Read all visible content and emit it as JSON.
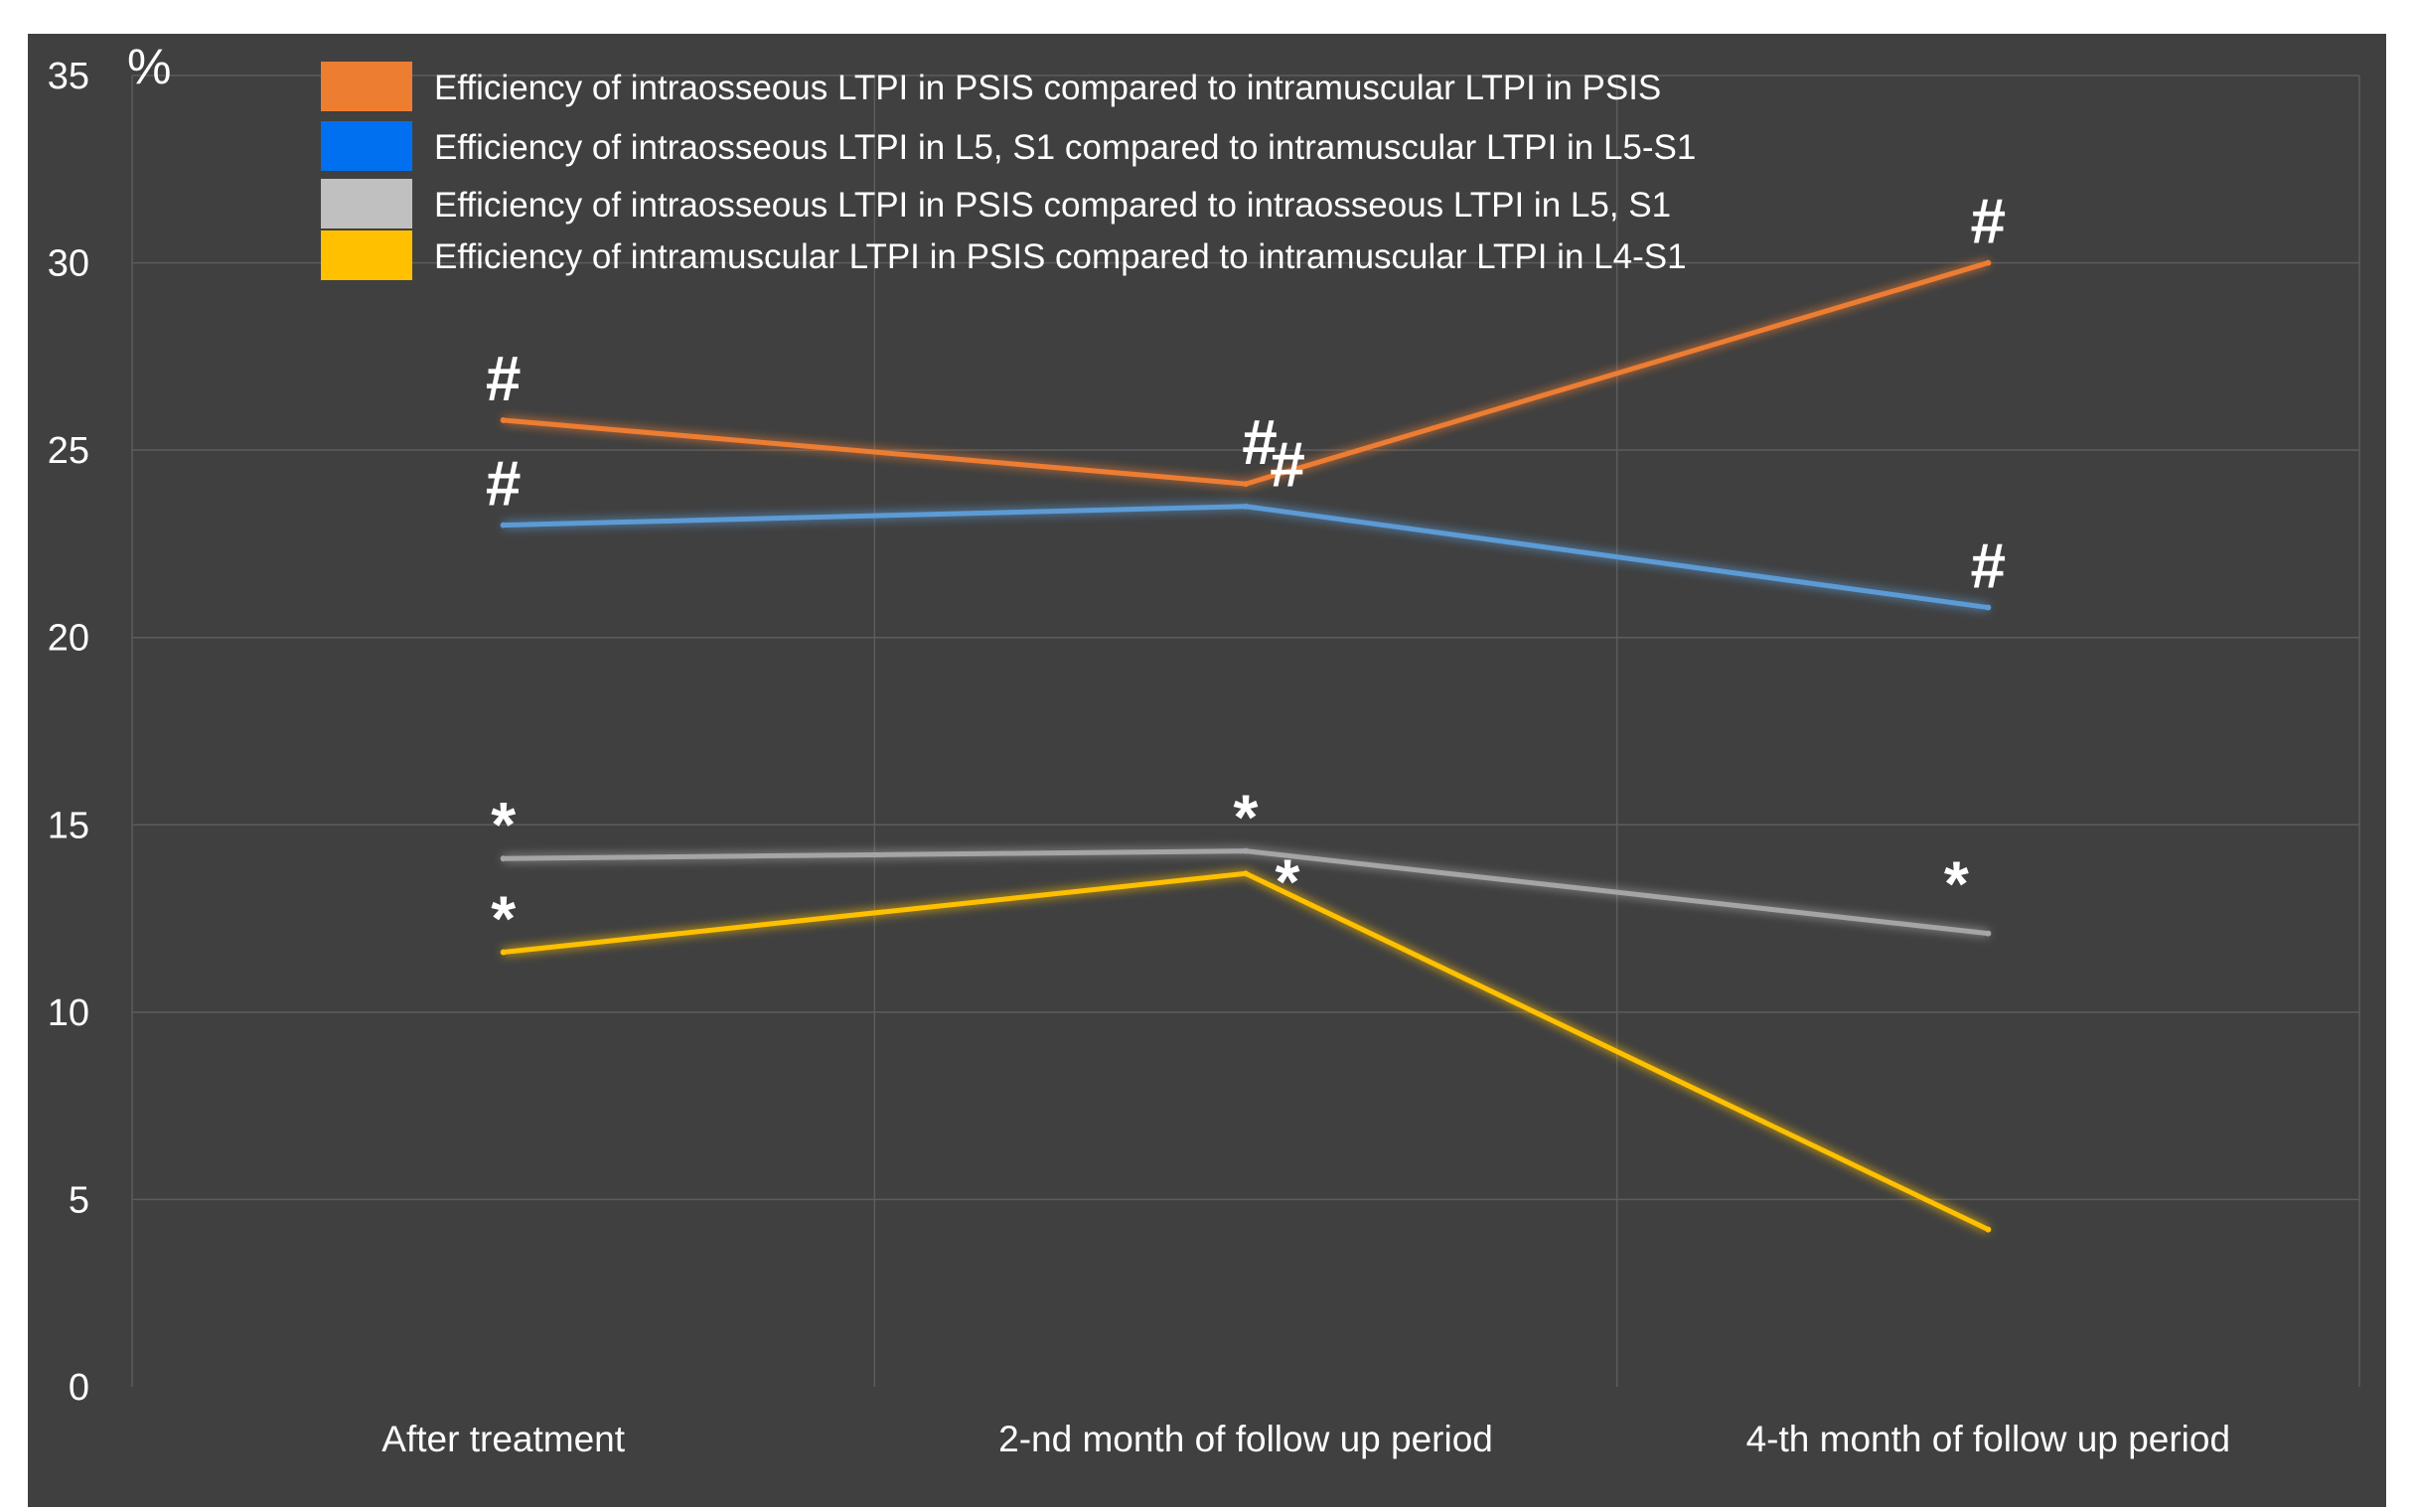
{
  "chart_data": {
    "type": "line",
    "title": "",
    "xlabel": "",
    "ylabel": "%",
    "ylim": [
      0,
      35
    ],
    "yticks": [
      0,
      5,
      10,
      15,
      20,
      25,
      30,
      35
    ],
    "grid": true,
    "legend_position": "top-left",
    "categories": [
      "After treatment",
      "2-nd  month of follow up period",
      "4-th month of follow up period"
    ],
    "series": [
      {
        "name": "Efficiency of intraosseous LTPI in PSIS compared to intramuscular LTPI in PSIS",
        "color": "#ED7D31",
        "legend_color": "#ED7D31",
        "values": [
          25.8,
          24.1,
          30.0
        ],
        "markers": [
          "#",
          "#",
          "#"
        ]
      },
      {
        "name": "Efficiency of intraosseous LTPI in L5, S1 compared to intramuscular LTPI in L5-S1",
        "color": "#5B9BD5",
        "legend_color": "#0070F0",
        "values": [
          23.0,
          23.5,
          20.8
        ],
        "markers": [
          "#",
          "#",
          "#"
        ]
      },
      {
        "name": "Efficiency of intraosseous LTPI in PSIS compared to intraosseous LTPI in L5, S1",
        "color": "#A5A5A5",
        "legend_color": "#C0C0C0",
        "values": [
          14.1,
          14.3,
          12.1
        ],
        "markers": [
          "*",
          "*",
          "*"
        ]
      },
      {
        "name": "Efficiency of intramuscular LTPI in PSIS compared to intramuscular LTPI in L4-S1",
        "color": "#FFC000",
        "legend_color": "#FFC000",
        "values": [
          11.6,
          13.7,
          4.2
        ],
        "markers": [
          "*",
          "*"
        ]
      }
    ]
  },
  "colors": {
    "background": "#404040",
    "grid": "#5c5c5c",
    "text": "#ffffff"
  }
}
